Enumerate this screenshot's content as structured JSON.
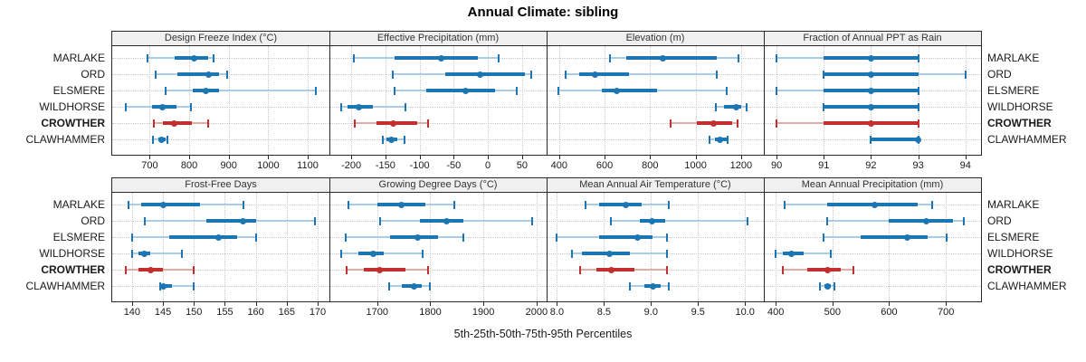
{
  "title": "Annual Climate: sibling",
  "caption": "5th-25th-50th-75th-95th Percentiles",
  "percentiles": [
    5,
    25,
    50,
    75,
    95
  ],
  "stations": [
    {
      "name": "MARLAKE",
      "emphasis": false
    },
    {
      "name": "ORD",
      "emphasis": false
    },
    {
      "name": "ELSMERE",
      "emphasis": false
    },
    {
      "name": "WILDHORSE",
      "emphasis": false
    },
    {
      "name": "CROWTHER",
      "emphasis": true
    },
    {
      "name": "CLAWHAMMER",
      "emphasis": false
    }
  ],
  "colors": {
    "series": "#1d76b4",
    "series_light": "#a9cde6",
    "highlight": "#c22f2f",
    "highlight_light": "#e5aba7",
    "strip_bg": "#f0f0f0",
    "panel_border": "#2a2a2a",
    "grid": "#c9c9c9",
    "text": "#1a1a1a"
  },
  "chart_data": [
    {
      "type": "dotplot",
      "row": 0,
      "title": "Design Freeze Index (°C)",
      "xlim": [
        605,
        1155
      ],
      "ticks": [
        700,
        800,
        900,
        1000,
        1100
      ],
      "tick_labels": [
        "700",
        "800",
        "900",
        "1000",
        "1100"
      ],
      "values": {
        "MARLAKE": [
          695,
          762,
          813,
          848,
          862
        ],
        "ORD": [
          714,
          770,
          848,
          876,
          895
        ],
        "ELSMERE": [
          740,
          810,
          842,
          876,
          1120
        ],
        "WILDHORSE": [
          640,
          705,
          733,
          768,
          805
        ],
        "CROWTHER": [
          710,
          733,
          762,
          806,
          848
        ],
        "CLAWHAMMER": [
          707,
          722,
          731,
          740,
          745
        ]
      }
    },
    {
      "type": "dotplot",
      "row": 0,
      "title": "Effective Precipitation (mm)",
      "xlim": [
        -232,
        86
      ],
      "ticks": [
        -200,
        -150,
        -100,
        -50,
        0,
        50
      ],
      "tick_labels": [
        "-200",
        "-150",
        "-100",
        "-50",
        "0",
        "50"
      ],
      "values": {
        "MARLAKE": [
          -196,
          -136,
          -68,
          -15,
          16
        ],
        "ORD": [
          -139,
          -63,
          -12,
          54,
          64
        ],
        "ELSMERE": [
          -137,
          -90,
          -33,
          10,
          42
        ],
        "WILDHORSE": [
          -215,
          -205,
          -189,
          -169,
          -121
        ],
        "CROWTHER": [
          -195,
          -163,
          -138,
          -103,
          -88
        ],
        "CLAWHAMMER": [
          -154,
          -149,
          -141,
          -132,
          -122
        ]
      }
    },
    {
      "type": "dotplot",
      "row": 0,
      "title": "Elevation (m)",
      "xlim": [
        345,
        1300
      ],
      "ticks": [
        400,
        600,
        800,
        1000,
        1200
      ],
      "tick_labels": [
        "400",
        "600",
        "800",
        "1000",
        "1200"
      ],
      "values": {
        "MARLAKE": [
          625,
          695,
          855,
          1095,
          1190
        ],
        "ORD": [
          430,
          487,
          558,
          707,
          1095
        ],
        "ELSMERE": [
          398,
          588,
          654,
          832,
          1135
        ],
        "WILDHORSE": [
          1090,
          1125,
          1180,
          1200,
          1225
        ],
        "CROWTHER": [
          890,
          1005,
          1078,
          1160,
          1185
        ],
        "CLAWHAMMER": [
          1062,
          1084,
          1108,
          1135,
          1141
        ]
      }
    },
    {
      "type": "dotplot",
      "row": 0,
      "title": "Fraction of Annual PPT as Rain",
      "xlim": [
        89.73,
        94.33
      ],
      "ticks": [
        90,
        91,
        92,
        93,
        94
      ],
      "tick_labels": [
        "90",
        "91",
        "92",
        "93",
        "94"
      ],
      "values": {
        "MARLAKE": [
          90,
          91,
          92,
          93,
          93
        ],
        "ORD": [
          91,
          91,
          92,
          93,
          94
        ],
        "ELSMERE": [
          90,
          91,
          92,
          93,
          93
        ],
        "WILDHORSE": [
          91,
          91,
          92,
          93,
          93
        ],
        "CROWTHER": [
          90,
          91,
          92,
          93,
          93
        ],
        "CLAWHAMMER": [
          92,
          92,
          93,
          93,
          93
        ]
      }
    },
    {
      "type": "dotplot",
      "row": 1,
      "title": "Frost-Free Days",
      "xlim": [
        136.8,
        171.9
      ],
      "ticks": [
        140,
        145,
        150,
        155,
        160,
        165,
        170
      ],
      "tick_labels": [
        "140",
        "145",
        "150",
        "155",
        "160",
        "165",
        "170"
      ],
      "values": {
        "MARLAKE": [
          139.5,
          141.5,
          145,
          151,
          158
        ],
        "ORD": [
          142,
          152,
          158,
          160,
          169.5
        ],
        "ELSMERE": [
          140,
          146,
          154,
          157,
          160
        ],
        "WILDHORSE": [
          140,
          141,
          142,
          143,
          148
        ],
        "CROWTHER": [
          139,
          141,
          143,
          145,
          150
        ],
        "CLAWHAMMER": [
          144.5,
          145,
          145,
          146.5,
          150
        ]
      }
    },
    {
      "type": "dotplot",
      "row": 1,
      "title": "Growing Degree Days (°C)",
      "xlim": [
        1610,
        2019
      ],
      "ticks": [
        1700,
        1800,
        1900,
        2000
      ],
      "tick_labels": [
        "1700",
        "1800",
        "1900",
        "2000"
      ],
      "values": {
        "MARLAKE": [
          1645,
          1700,
          1746,
          1790,
          1845
        ],
        "ORD": [
          1705,
          1780,
          1830,
          1862,
          1992
        ],
        "ELSMERE": [
          1640,
          1725,
          1776,
          1815,
          1862
        ],
        "WILDHORSE": [
          1633,
          1665,
          1692,
          1712,
          1785
        ],
        "CROWTHER": [
          1643,
          1675,
          1705,
          1753,
          1796
        ],
        "CLAWHAMMER": [
          1723,
          1747,
          1770,
          1784,
          1800
        ]
      }
    },
    {
      "type": "dotplot",
      "row": 1,
      "title": "Mean Annual Air Temperature (°C)",
      "xlim": [
        7.89,
        10.2
      ],
      "ticks": [
        8.0,
        8.5,
        9.0,
        9.5,
        10.0
      ],
      "tick_labels": [
        "8.0",
        "8.5",
        "9.0",
        "9.5",
        "10.0"
      ],
      "values": {
        "MARLAKE": [
          8.3,
          8.45,
          8.73,
          8.9,
          9.19
        ],
        "ORD": [
          8.57,
          8.88,
          9.01,
          9.15,
          10.03
        ],
        "ELSMERE": [
          8.0,
          8.45,
          8.86,
          9.02,
          9.17
        ],
        "WILDHORSE": [
          8.16,
          8.27,
          8.56,
          8.78,
          9.17
        ],
        "CROWTHER": [
          8.25,
          8.42,
          8.58,
          8.82,
          9.17
        ],
        "CLAWHAMMER": [
          8.78,
          8.93,
          9.02,
          9.1,
          9.19
        ]
      }
    },
    {
      "type": "dotplot",
      "row": 1,
      "title": "Mean Annual Precipitation (mm)",
      "xlim": [
        379,
        762
      ],
      "ticks": [
        400,
        500,
        600,
        700
      ],
      "tick_labels": [
        "400",
        "500",
        "600",
        "700"
      ],
      "values": {
        "MARLAKE": [
          415,
          490,
          575,
          650,
          676
        ],
        "ORD": [
          490,
          600,
          665,
          712,
          732
        ],
        "ELSMERE": [
          485,
          550,
          632,
          668,
          702
        ],
        "WILDHORSE": [
          400,
          412,
          428,
          450,
          497
        ],
        "CROWTHER": [
          413,
          455,
          492,
          515,
          537
        ],
        "CLAWHAMMER": [
          478,
          486,
          491,
          497,
          503
        ]
      }
    }
  ]
}
